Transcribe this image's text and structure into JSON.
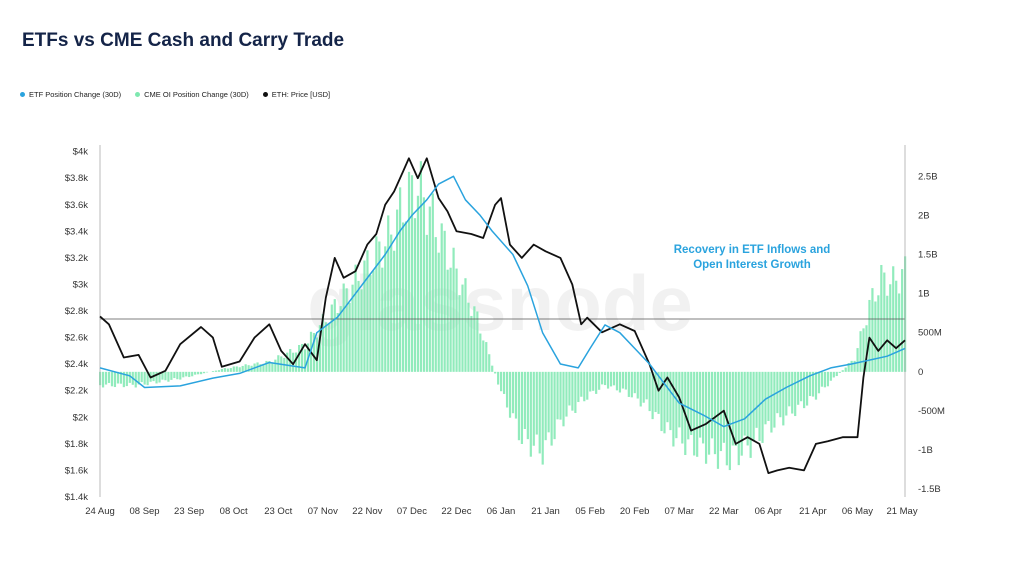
{
  "title": "ETFs vs CME Cash and Carry Trade",
  "watermark": "glassnode",
  "colors": {
    "etf": "#2aa3de",
    "cme": "#7ee8b0",
    "eth": "#111111",
    "title": "#142448"
  },
  "legend": [
    {
      "label": "ETF Position Change (30D)",
      "color": "#2aa3de"
    },
    {
      "label": "CME OI Position Change (30D)",
      "color": "#7ee8b0"
    },
    {
      "label": "ETH: Price [USD]",
      "color": "#111111"
    }
  ],
  "annotation": {
    "line1": "Recovery in ETF Inflows and",
    "line2": "Open Interest Growth"
  },
  "chart_data": {
    "type": "line",
    "title": "ETFs vs CME Cash and Carry Trade",
    "x_start": "2024-08-24",
    "x_end": "2025-05-22",
    "x_ticks": [
      "24 Aug",
      "08 Sep",
      "23 Sep",
      "08 Oct",
      "23 Oct",
      "07 Nov",
      "22 Nov",
      "07 Dec",
      "22 Dec",
      "06 Jan",
      "21 Jan",
      "05 Feb",
      "20 Feb",
      "07 Mar",
      "22 Mar",
      "06 Apr",
      "21 Apr",
      "06 May",
      "21 May"
    ],
    "y_left": {
      "label": "ETH: Price [USD]",
      "ylim": [
        1400,
        4050
      ],
      "ticks": [
        "$1.4k",
        "$1.6k",
        "$1.8k",
        "$2k",
        "$2.2k",
        "$2.4k",
        "$2.6k",
        "$2.8k",
        "$3k",
        "$3.2k",
        "$3.4k",
        "$3.6k",
        "$3.8k",
        "$4k"
      ]
    },
    "y_right": {
      "label": "Position Change (30D)",
      "ylim": [
        -1.6,
        2.9
      ],
      "ticks": [
        "-1.5B",
        "-1B",
        "-500M",
        "0",
        "500M",
        "1B",
        "1.5B",
        "2B",
        "2.5B"
      ]
    },
    "reference_line": {
      "axis": "left",
      "value": 2740
    },
    "grid": false,
    "series": [
      {
        "name": "ETH: Price [USD]",
        "axis": "left",
        "style": "line",
        "x": [
          "2024-08-24",
          "2024-08-27",
          "2024-09-01",
          "2024-09-06",
          "2024-09-10",
          "2024-09-15",
          "2024-09-20",
          "2024-09-27",
          "2024-10-01",
          "2024-10-04",
          "2024-10-10",
          "2024-10-15",
          "2024-10-20",
          "2024-10-24",
          "2024-10-28",
          "2024-11-01",
          "2024-11-05",
          "2024-11-08",
          "2024-11-11",
          "2024-11-14",
          "2024-11-18",
          "2024-11-22",
          "2024-11-25",
          "2024-11-28",
          "2024-12-01",
          "2024-12-04",
          "2024-12-06",
          "2024-12-09",
          "2024-12-12",
          "2024-12-16",
          "2024-12-19",
          "2024-12-22",
          "2024-12-27",
          "2024-12-31",
          "2025-01-04",
          "2025-01-06",
          "2025-01-09",
          "2025-01-13",
          "2025-01-17",
          "2025-01-21",
          "2025-01-26",
          "2025-01-30",
          "2025-02-02",
          "2025-02-04",
          "2025-02-09",
          "2025-02-15",
          "2025-02-20",
          "2025-02-25",
          "2025-02-28",
          "2025-03-03",
          "2025-03-07",
          "2025-03-11",
          "2025-03-16",
          "2025-03-22",
          "2025-03-26",
          "2025-03-30",
          "2025-04-03",
          "2025-04-06",
          "2025-04-09",
          "2025-04-13",
          "2025-04-18",
          "2025-04-22",
          "2025-04-26",
          "2025-05-01",
          "2025-05-06",
          "2025-05-08",
          "2025-05-10",
          "2025-05-13",
          "2025-05-16",
          "2025-05-19",
          "2025-05-22"
        ],
        "values": [
          2760,
          2700,
          2450,
          2470,
          2300,
          2350,
          2550,
          2680,
          2600,
          2380,
          2420,
          2600,
          2700,
          2500,
          2400,
          2550,
          2430,
          2900,
          3200,
          3050,
          3100,
          3300,
          3380,
          3600,
          3700,
          3850,
          3950,
          3800,
          3950,
          3650,
          3550,
          3400,
          3380,
          3350,
          3600,
          3650,
          3300,
          3200,
          3300,
          3250,
          3200,
          3000,
          2700,
          2750,
          2640,
          2700,
          2650,
          2400,
          2200,
          2300,
          2150,
          1900,
          1950,
          2050,
          1800,
          1850,
          1800,
          1580,
          1600,
          1620,
          1600,
          1800,
          1820,
          1850,
          1850,
          2300,
          2600,
          2500,
          2580,
          2520,
          2580
        ]
      },
      {
        "name": "ETF Position Change (30D)",
        "axis": "right",
        "style": "line",
        "x": [
          "2024-08-24",
          "2024-09-03",
          "2024-09-08",
          "2024-09-20",
          "2024-10-01",
          "2024-10-10",
          "2024-10-20",
          "2024-11-01",
          "2024-11-05",
          "2024-11-12",
          "2024-11-18",
          "2024-11-22",
          "2024-11-28",
          "2024-12-03",
          "2024-12-07",
          "2024-12-12",
          "2024-12-16",
          "2024-12-21",
          "2024-12-25",
          "2024-12-30",
          "2025-01-03",
          "2025-01-10",
          "2025-01-15",
          "2025-01-20",
          "2025-01-26",
          "2025-02-01",
          "2025-02-05",
          "2025-02-10",
          "2025-02-15",
          "2025-02-20",
          "2025-02-25",
          "2025-03-01",
          "2025-03-07",
          "2025-03-15",
          "2025-03-22",
          "2025-03-29",
          "2025-04-05",
          "2025-04-12",
          "2025-04-20",
          "2025-04-27",
          "2025-05-04",
          "2025-05-10",
          "2025-05-16",
          "2025-05-22"
        ],
        "values": [
          0.05,
          -0.05,
          -0.2,
          -0.18,
          -0.08,
          -0.02,
          0.12,
          0.05,
          0.5,
          0.7,
          1.0,
          1.2,
          1.5,
          1.8,
          2.0,
          2.2,
          2.4,
          2.5,
          2.2,
          2.0,
          1.8,
          1.5,
          1.1,
          0.5,
          0.1,
          0.05,
          0.3,
          0.6,
          0.5,
          0.3,
          0.1,
          -0.1,
          -0.4,
          -0.55,
          -0.7,
          -0.6,
          -0.35,
          -0.2,
          -0.05,
          0.05,
          0.1,
          0.15,
          0.2,
          0.3
        ]
      },
      {
        "name": "CME OI Position Change (30D)",
        "axis": "right",
        "style": "bar",
        "x": [
          "2024-08-24",
          "2024-09-05",
          "2024-09-20",
          "2024-10-05",
          "2024-10-20",
          "2024-11-01",
          "2024-11-08",
          "2024-11-15",
          "2024-11-22",
          "2024-11-29",
          "2024-12-05",
          "2024-12-09",
          "2024-12-15",
          "2024-12-22",
          "2024-12-29",
          "2025-01-06",
          "2025-01-13",
          "2025-01-20",
          "2025-01-27",
          "2025-02-03",
          "2025-02-10",
          "2025-02-17",
          "2025-02-24",
          "2025-03-03",
          "2025-03-10",
          "2025-03-17",
          "2025-03-24",
          "2025-03-31",
          "2025-04-07",
          "2025-04-14",
          "2025-04-21",
          "2025-04-28",
          "2025-05-05",
          "2025-05-10",
          "2025-05-14",
          "2025-05-18",
          "2025-05-22"
        ],
        "values": [
          -0.2,
          -0.2,
          -0.1,
          0.05,
          0.15,
          0.4,
          0.8,
          1.2,
          1.6,
          2.0,
          2.6,
          2.8,
          2.2,
          1.5,
          0.8,
          -0.3,
          -1.0,
          -1.2,
          -0.7,
          -0.4,
          -0.2,
          -0.3,
          -0.5,
          -0.9,
          -1.1,
          -1.2,
          -1.3,
          -1.1,
          -0.8,
          -0.6,
          -0.4,
          -0.1,
          0.2,
          1.0,
          1.4,
          1.35,
          1.5
        ]
      }
    ]
  }
}
